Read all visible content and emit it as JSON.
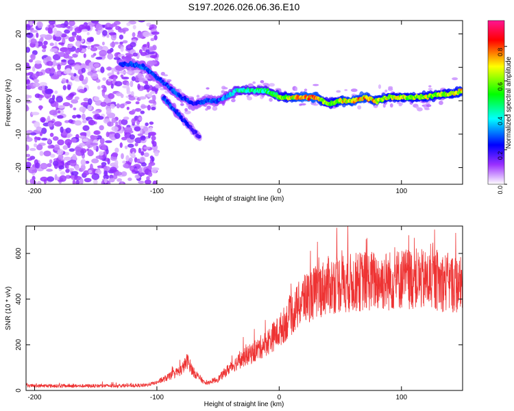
{
  "title": "S197.2026.026.06.36.E10",
  "chart_data": [
    {
      "type": "heatmap",
      "xlabel": "Height of straight line (km)",
      "ylabel": "Frequency (Hz)",
      "xlim": [
        -207,
        150
      ],
      "ylim": [
        -25,
        24
      ],
      "x_ticks": [
        -200,
        -100,
        0,
        100
      ],
      "x_tick_labels": [
        "-200",
        "-100",
        "0",
        "100"
      ],
      "y_ticks": [
        -20,
        -10,
        0,
        10,
        20
      ],
      "y_tick_labels": [
        "-20",
        "-10",
        "0",
        "10",
        "20"
      ],
      "colorbar": {
        "label": "Normalized spectral amplitude",
        "range": [
          0,
          0.95
        ],
        "ticks": [
          0,
          0.2,
          0.4,
          0.6,
          0.8
        ],
        "tick_labels": [
          "0.0",
          "0.2",
          "0.4",
          "0.6",
          "0.8"
        ],
        "colors": [
          "#ffffff",
          "#9b30ff",
          "#0000ff",
          "#00ffff",
          "#00ff00",
          "#ffff00",
          "#ff0000",
          "#ff1493"
        ]
      },
      "ridge": {
        "x": [
          -130,
          -120,
          -110,
          -100,
          -90,
          -80,
          -70,
          -60,
          -50,
          -40,
          -35,
          -30,
          -20,
          -10,
          0,
          10,
          20,
          30,
          40,
          50,
          60,
          70,
          80,
          90,
          100,
          110,
          120,
          130,
          140,
          150
        ],
        "frequency": [
          11,
          11,
          10,
          7,
          4,
          1,
          -1,
          0,
          0,
          2,
          3,
          3,
          3,
          3,
          1,
          1,
          1,
          1,
          -1,
          0,
          0,
          1,
          0,
          1,
          1,
          1,
          1,
          2,
          2,
          3
        ],
        "amplitude": [
          0.25,
          0.3,
          0.3,
          0.3,
          0.3,
          0.3,
          0.25,
          0.3,
          0.3,
          0.4,
          0.45,
          0.5,
          0.5,
          0.5,
          0.6,
          0.75,
          0.85,
          0.85,
          0.6,
          0.75,
          0.8,
          0.8,
          0.75,
          0.7,
          0.7,
          0.7,
          0.7,
          0.7,
          0.7,
          0.75
        ]
      },
      "branch": {
        "x": [
          -95,
          -90,
          -85,
          -80,
          -75,
          -70,
          -65
        ],
        "frequency": [
          1,
          -1,
          -3,
          -5,
          -7,
          -9,
          -11
        ],
        "amplitude": [
          0.3,
          0.3,
          0.3,
          0.25,
          0.25,
          0.2,
          0.2
        ]
      }
    },
    {
      "type": "line",
      "xlabel": "Height of straight line (km)",
      "ylabel": "SNR (10 * v/v)",
      "xlim": [
        -207,
        150
      ],
      "ylim": [
        0,
        720
      ],
      "x_ticks": [
        -200,
        -100,
        0,
        100
      ],
      "x_tick_labels": [
        "-200",
        "-100",
        "0",
        "100"
      ],
      "y_ticks": [
        0,
        200,
        400,
        600
      ],
      "y_tick_labels": [
        "0",
        "200",
        "400",
        "600"
      ],
      "series": [
        {
          "name": "SNR",
          "color": "#ee3333",
          "x": [
            -207,
            -150,
            -110,
            -100,
            -90,
            -80,
            -75,
            -70,
            -60,
            -50,
            -40,
            -30,
            -20,
            -10,
            0,
            10,
            20,
            30,
            40,
            50,
            60,
            70,
            80,
            90,
            100,
            110,
            120,
            130,
            140,
            150
          ],
          "y": [
            20,
            20,
            22,
            35,
            60,
            90,
            130,
            80,
            30,
            50,
            100,
            140,
            170,
            210,
            260,
            330,
            400,
            430,
            460,
            470,
            470,
            480,
            480,
            480,
            490,
            490,
            480,
            480,
            470,
            460
          ]
        }
      ]
    }
  ]
}
